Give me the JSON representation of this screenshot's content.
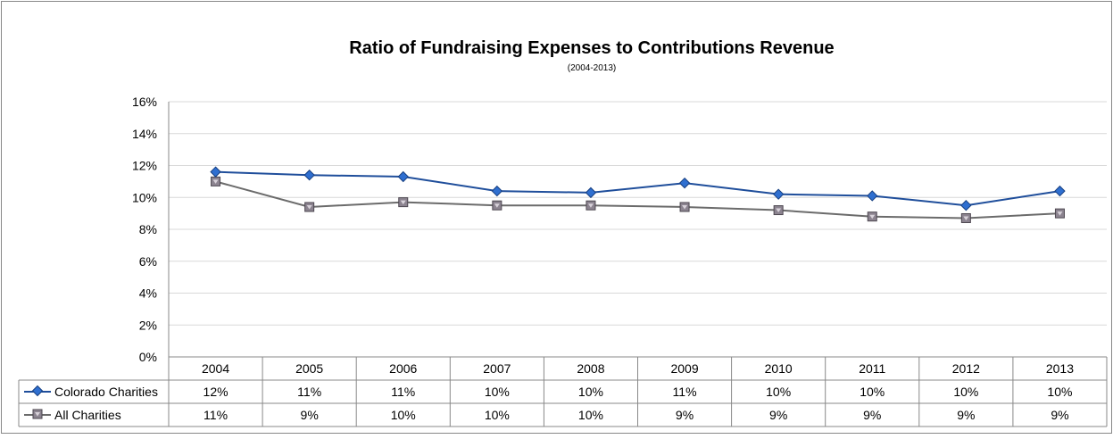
{
  "chart_data": {
    "type": "line",
    "title": "Ratio of Fundraising Expenses to Contributions Revenue",
    "subtitle": "(2004-2013)",
    "categories": [
      "2004",
      "2005",
      "2006",
      "2007",
      "2008",
      "2009",
      "2010",
      "2011",
      "2012",
      "2013"
    ],
    "y_ticks": [
      "0%",
      "2%",
      "4%",
      "6%",
      "8%",
      "10%",
      "12%",
      "14%",
      "16%"
    ],
    "ylim": [
      0,
      16
    ],
    "grid": true,
    "legend": "data-table",
    "series": [
      {
        "name": "Colorado Charities",
        "color": "#1F4E9B",
        "marker": "diamond",
        "values": [
          11.6,
          11.4,
          11.3,
          10.4,
          10.3,
          10.9,
          10.2,
          10.1,
          9.5,
          10.4
        ],
        "labels": [
          "12%",
          "11%",
          "11%",
          "10%",
          "10%",
          "11%",
          "10%",
          "10%",
          "10%",
          "10%"
        ]
      },
      {
        "name": "All Charities",
        "color": "#6B6B6B",
        "marker": "square",
        "values": [
          11.0,
          9.4,
          9.7,
          9.5,
          9.5,
          9.4,
          9.2,
          8.8,
          8.7,
          9.0
        ],
        "labels": [
          "11%",
          "9%",
          "10%",
          "10%",
          "10%",
          "9%",
          "9%",
          "9%",
          "9%",
          "9%"
        ]
      }
    ]
  }
}
